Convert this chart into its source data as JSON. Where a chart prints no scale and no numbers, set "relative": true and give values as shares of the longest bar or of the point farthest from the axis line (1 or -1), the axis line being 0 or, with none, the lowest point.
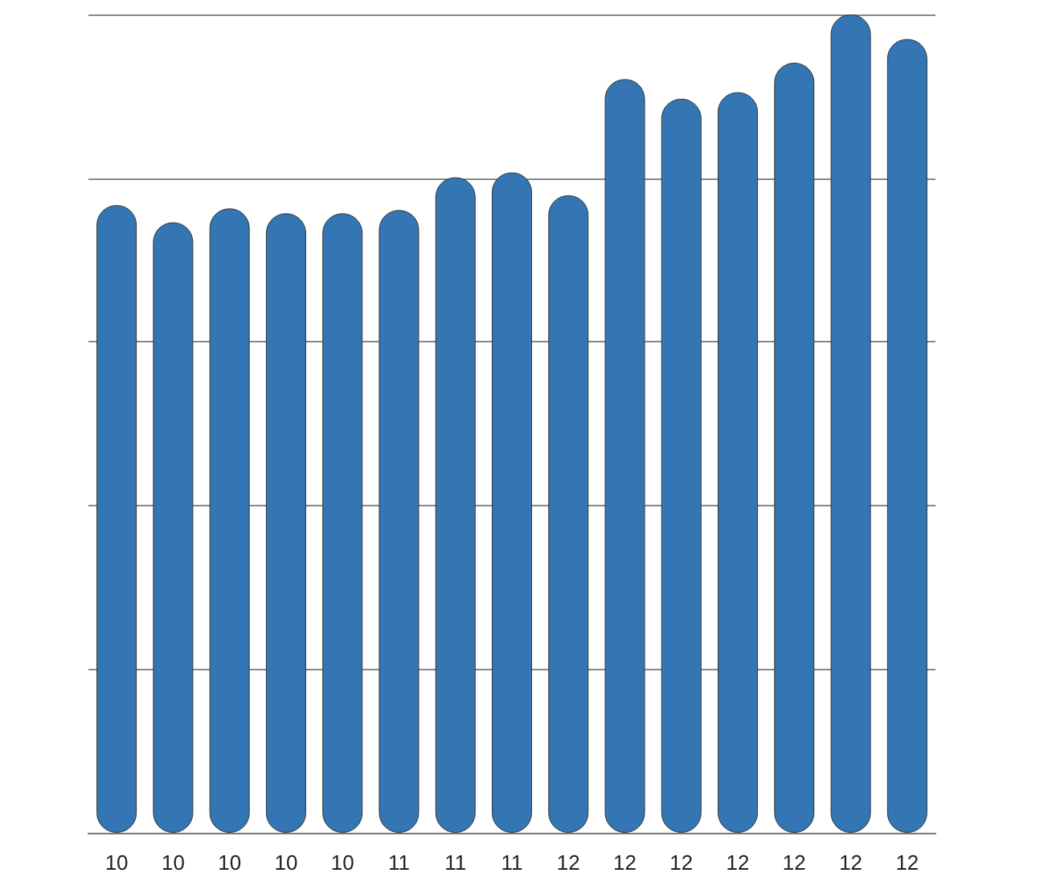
{
  "chart_data": {
    "type": "bar",
    "relative": true,
    "categories": [
      "10",
      "10",
      "10",
      "10",
      "10",
      "11",
      "11",
      "11",
      "12",
      "12",
      "12",
      "12",
      "12",
      "12",
      "12"
    ],
    "values": [
      0.767,
      0.746,
      0.763,
      0.757,
      0.757,
      0.761,
      0.801,
      0.807,
      0.779,
      0.921,
      0.897,
      0.905,
      0.941,
      1,
      0.97
    ],
    "color": "#3476b4",
    "grid": "y"
  }
}
